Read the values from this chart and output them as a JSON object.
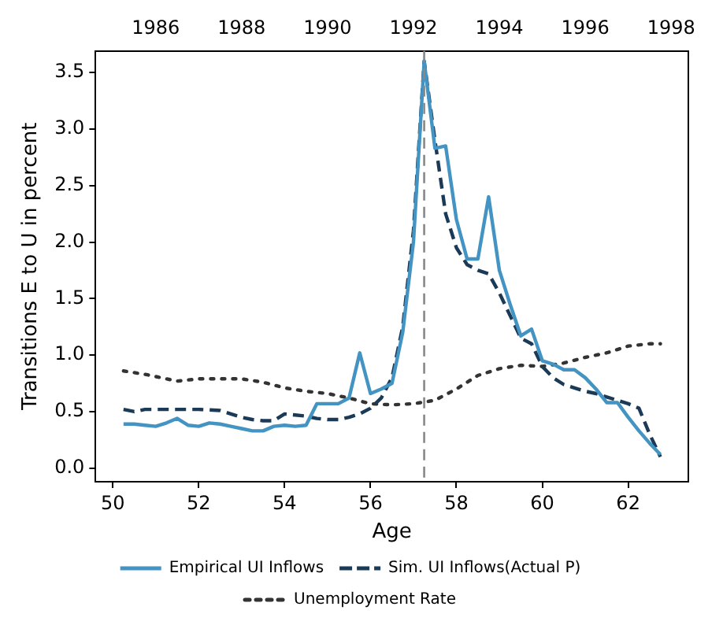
{
  "chart_data": {
    "type": "line",
    "xlabel": "Age",
    "ylabel": "Transitions E to U in percent",
    "xlim": [
      49.6,
      63.4
    ],
    "xticks": [
      50,
      52,
      54,
      56,
      58,
      60,
      62
    ],
    "x2lim": [
      1984.6,
      1998.4
    ],
    "x2ticks": [
      1986,
      1988,
      1990,
      1992,
      1994,
      1996,
      1998
    ],
    "ylim": [
      -0.12,
      3.69
    ],
    "yticks": [
      {
        "value": 0,
        "label": "0.0"
      },
      {
        "value": 0.5,
        "label": "0.5"
      },
      {
        "value": 1,
        "label": "1.0"
      },
      {
        "value": 1.5,
        "label": "1.5"
      },
      {
        "value": 2,
        "label": "2.0"
      },
      {
        "value": 2.5,
        "label": "2.5"
      },
      {
        "value": 3,
        "label": "3.0"
      },
      {
        "value": 3.5,
        "label": "3.5"
      }
    ],
    "legend": "bottom",
    "grid": false,
    "marker": "none",
    "ref_lines": [
      {
        "axis": "x",
        "value": 57.25,
        "color": "#888888",
        "line_style": "dashed"
      }
    ],
    "series": [
      {
        "name": "Empirical UI Inflows",
        "color": "#4393c3",
        "line_style": "solid",
        "x": [
          50.25,
          50.5,
          50.75,
          51,
          51.25,
          51.5,
          51.75,
          52,
          52.25,
          52.5,
          52.75,
          53,
          53.25,
          53.5,
          53.75,
          54,
          54.25,
          54.5,
          54.75,
          55,
          55.25,
          55.5,
          55.75,
          56,
          56.25,
          56.5,
          56.75,
          57,
          57.25,
          57.5,
          57.75,
          58,
          58.25,
          58.5,
          58.75,
          59,
          59.25,
          59.5,
          59.75,
          60,
          60.25,
          60.5,
          60.75,
          61,
          61.25,
          61.5,
          61.75,
          62,
          62.25,
          62.5,
          62.75
        ],
        "values": [
          0.39,
          0.39,
          0.38,
          0.37,
          0.4,
          0.44,
          0.38,
          0.37,
          0.4,
          0.39,
          0.37,
          0.35,
          0.33,
          0.33,
          0.37,
          0.38,
          0.37,
          0.38,
          0.57,
          0.57,
          0.57,
          0.62,
          1.02,
          0.66,
          0.7,
          0.75,
          1.2,
          2.0,
          3.6,
          2.83,
          2.85,
          2.2,
          1.85,
          1.85,
          2.4,
          1.75,
          1.45,
          1.17,
          1.23,
          0.95,
          0.92,
          0.87,
          0.87,
          0.8,
          0.7,
          0.58,
          0.58,
          0.45,
          0.33,
          0.22,
          0.12
        ]
      },
      {
        "name": "Sim. UI Inflows(Actual P)",
        "color": "#1b3a57",
        "line_style": "dashed",
        "x": [
          50.25,
          50.5,
          50.75,
          51,
          51.5,
          52,
          52.5,
          52.75,
          53,
          53.25,
          53.5,
          53.75,
          54,
          54.25,
          54.5,
          54.75,
          55,
          55.25,
          55.5,
          55.75,
          56,
          56.25,
          56.5,
          56.75,
          57,
          57.25,
          57.5,
          57.75,
          58,
          58.25,
          58.5,
          58.75,
          59,
          59.25,
          59.5,
          59.75,
          60,
          60.25,
          60.5,
          60.75,
          61,
          61.25,
          61.5,
          61.75,
          62,
          62.25,
          62.5,
          62.75
        ],
        "values": [
          0.52,
          0.5,
          0.52,
          0.52,
          0.52,
          0.52,
          0.51,
          0.48,
          0.45,
          0.43,
          0.42,
          0.42,
          0.48,
          0.47,
          0.46,
          0.44,
          0.43,
          0.43,
          0.45,
          0.48,
          0.53,
          0.62,
          0.8,
          1.25,
          2.1,
          3.6,
          2.9,
          2.25,
          1.95,
          1.8,
          1.75,
          1.72,
          1.55,
          1.35,
          1.15,
          1.1,
          0.9,
          0.8,
          0.74,
          0.71,
          0.68,
          0.66,
          0.63,
          0.6,
          0.57,
          0.53,
          0.3,
          0.1
        ]
      },
      {
        "name": "Unemployment Rate",
        "color": "#333333",
        "line_style": "dotted",
        "x": [
          50.25,
          50.75,
          51.25,
          51.5,
          52,
          52.5,
          53,
          53.5,
          54,
          54.5,
          55,
          55.5,
          56,
          56.5,
          57,
          57.5,
          58,
          58.5,
          59,
          59.5,
          60,
          60.5,
          61,
          61.5,
          62,
          62.5,
          62.75
        ],
        "values": [
          0.86,
          0.83,
          0.79,
          0.77,
          0.79,
          0.79,
          0.79,
          0.76,
          0.71,
          0.68,
          0.66,
          0.62,
          0.57,
          0.56,
          0.57,
          0.6,
          0.7,
          0.82,
          0.88,
          0.91,
          0.9,
          0.93,
          0.98,
          1.02,
          1.08,
          1.1,
          1.1
        ]
      }
    ]
  }
}
